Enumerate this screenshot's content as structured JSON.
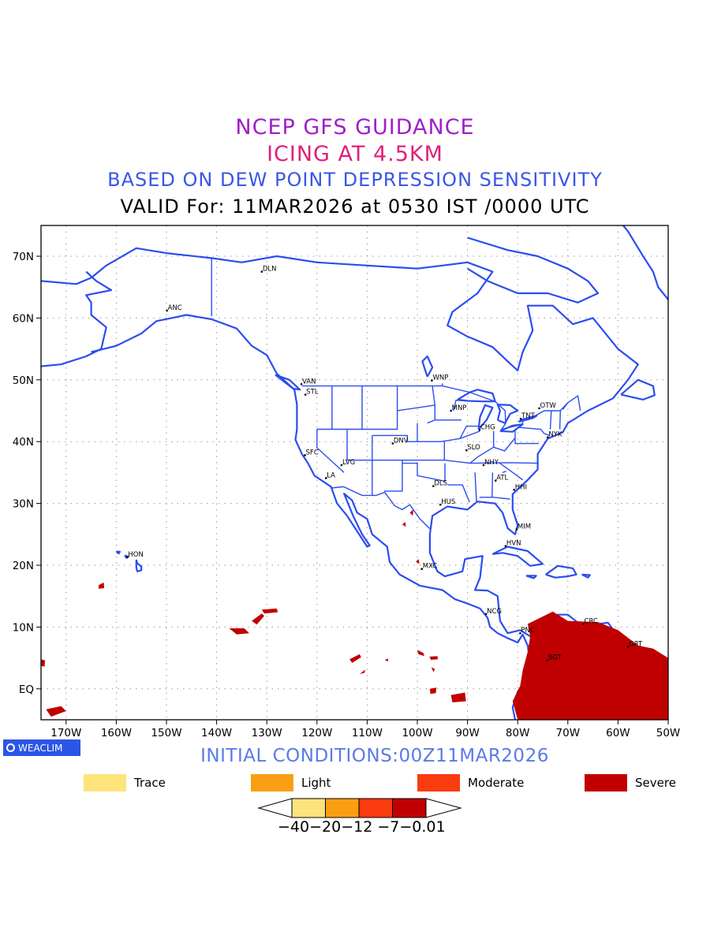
{
  "titles": {
    "line1": "NCEP GFS GUIDANCE",
    "line2": "ICING AT 4.5KM",
    "line3": "BASED ON DEW POINT DEPRESSION SENSITIVITY",
    "line4": "VALID For: 11MAR2026 at 0530 IST /0000 UTC"
  },
  "axes": {
    "lat_labels": [
      "70N",
      "60N",
      "50N",
      "40N",
      "30N",
      "20N",
      "10N",
      "EQ"
    ],
    "lon_labels": [
      "170W",
      "160W",
      "150W",
      "140W",
      "130W",
      "120W",
      "110W",
      "100W",
      "90W",
      "80W",
      "70W",
      "60W",
      "50W"
    ]
  },
  "stations": [
    "DLN",
    "ANC",
    "VAN",
    "STL",
    "WNP",
    "MNP",
    "OTW",
    "TNT",
    "CHG",
    "NYK",
    "SFC",
    "DNV",
    "SLO",
    "LVG",
    "LA",
    "NHY",
    "ATL",
    "HHI",
    "DLS",
    "HUS",
    "MIM",
    "HVN",
    "HON",
    "MXC",
    "NCG",
    "PNC",
    "CRC",
    "GRT",
    "BGT"
  ],
  "badge": "WEACLIM",
  "initial_conditions": "INITIAL CONDITIONS:00Z11MAR2026",
  "legend": [
    {
      "label": "Trace",
      "color": "#fde47c"
    },
    {
      "label": "Light",
      "color": "#fa9f12"
    },
    {
      "label": "Moderate",
      "color": "#fa3c0f"
    },
    {
      "label": "Severe",
      "color": "#c00000"
    }
  ],
  "colorbar": {
    "labels": "−40−20−12 −7−0.01",
    "colors": [
      "#fde47c",
      "#fa9f12",
      "#fa3c0f",
      "#c00000"
    ]
  },
  "colors": {
    "coastline": "#2b4df0",
    "icing_severe": "#c00000"
  }
}
